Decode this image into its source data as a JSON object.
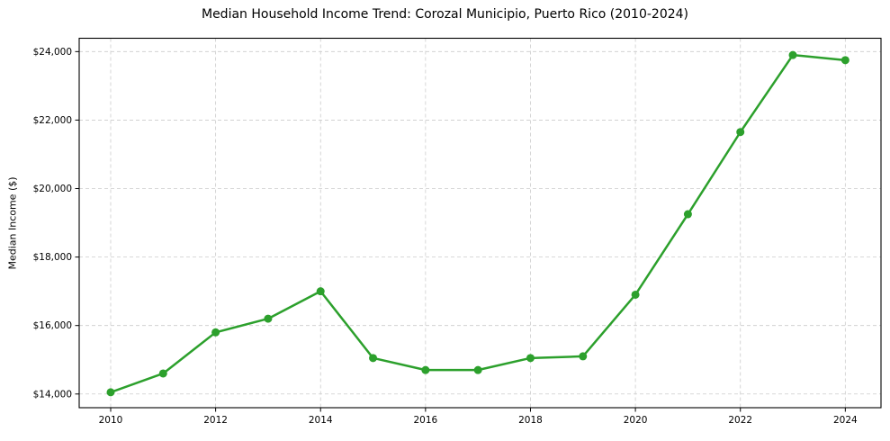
{
  "chart_data": {
    "type": "line",
    "title": "Median Household Income Trend: Corozal Municipio, Puerto Rico (2010-2024)",
    "xlabel": "",
    "ylabel": "Median Income ($)",
    "series": [
      {
        "name": "Median Household Income",
        "x": [
          2010,
          2011,
          2012,
          2013,
          2014,
          2015,
          2016,
          2017,
          2018,
          2019,
          2020,
          2021,
          2022,
          2023,
          2024
        ],
        "values": [
          14050,
          14600,
          15800,
          16200,
          17000,
          15050,
          14700,
          14700,
          15050,
          15100,
          16900,
          19250,
          21650,
          23900,
          23750
        ]
      }
    ],
    "xlim": [
      2009.4,
      2024.68
    ],
    "ylim": [
      13600,
      24390
    ],
    "xticks": [
      {
        "value": 2010,
        "label": "2010"
      },
      {
        "value": 2012,
        "label": "2012"
      },
      {
        "value": 2014,
        "label": "2014"
      },
      {
        "value": 2016,
        "label": "2016"
      },
      {
        "value": 2018,
        "label": "2018"
      },
      {
        "value": 2020,
        "label": "2020"
      },
      {
        "value": 2022,
        "label": "2022"
      },
      {
        "value": 2024,
        "label": "2024"
      }
    ],
    "yticks": [
      {
        "value": 14000,
        "label": "$14,000"
      },
      {
        "value": 16000,
        "label": "$16,000"
      },
      {
        "value": 18000,
        "label": "$18,000"
      },
      {
        "value": 20000,
        "label": "$20,000"
      },
      {
        "value": 22000,
        "label": "$22,000"
      },
      {
        "value": 24000,
        "label": "$24,000"
      }
    ],
    "grid": true,
    "legend_position": "none",
    "colors": {
      "line": "#2ca02c",
      "marker": "#2ca02c",
      "gridline": "#cccccc",
      "spine": "#000000",
      "background": "#ffffff",
      "text": "#000000"
    }
  }
}
